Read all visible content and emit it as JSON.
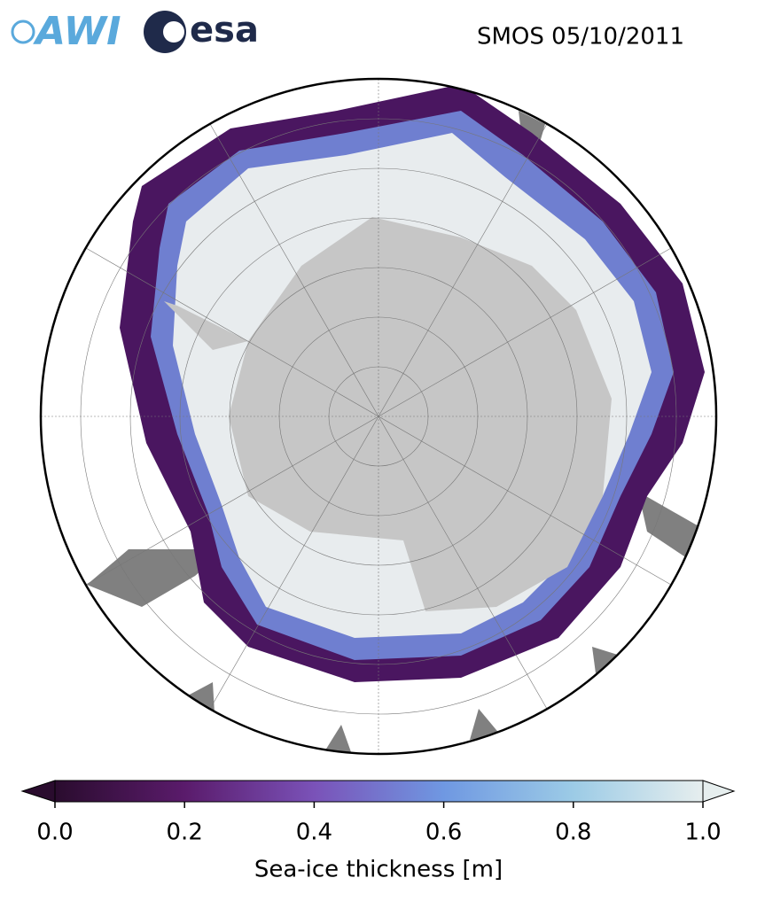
{
  "header": {
    "logos": [
      "AWI",
      "esa"
    ],
    "title": "SMOS 05/10/2011"
  },
  "colorbar": {
    "label": "Sea-ice thickness [m]",
    "lim": [
      0,
      1
    ],
    "ticks": [
      {
        "value": 0,
        "label": "0.0"
      },
      0.2,
      0.4,
      0.6,
      0.8,
      {
        "value": 1,
        "label": "1.0"
      }
    ],
    "colormap": [
      "#2a0c2e",
      "#5a1b6b",
      "#7a52b8",
      "#6f98e2",
      "#9ccbe6",
      "#e6eeee"
    ]
  }
}
